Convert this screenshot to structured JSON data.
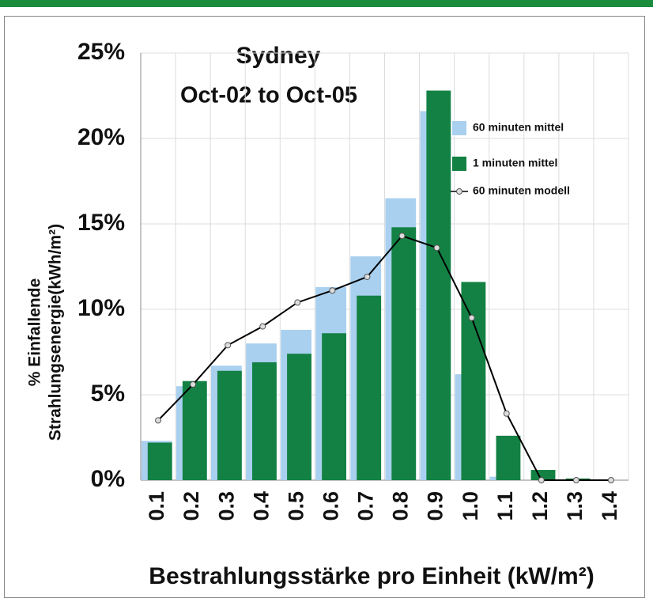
{
  "chart_data": {
    "type": "bar",
    "title": "Sydney",
    "subtitle": "Oct-02 to Oct-05",
    "y_label": [
      "% Einfallende",
      "Strahlungsenergie(kWh/m²)"
    ],
    "x_label": "Bestrahlungsstärke pro Einheit (kW/m²)",
    "categories": [
      "0.1",
      "0.2",
      "0.3",
      "0.4",
      "0.5",
      "0.6",
      "0.7",
      "0.8",
      "0.9",
      "1.0",
      "1.1",
      "1.2",
      "1.3",
      "1.4"
    ],
    "series": [
      {
        "name": "60 minuten mittel",
        "type": "bar",
        "color": "#a9d0ef",
        "values": [
          2.3,
          5.5,
          6.7,
          8.0,
          8.8,
          11.3,
          13.1,
          16.5,
          21.6,
          6.2,
          0.2,
          0,
          0,
          0
        ]
      },
      {
        "name": "1 minuten mittel",
        "type": "bar",
        "color": "#138143",
        "values": [
          2.2,
          5.8,
          6.4,
          6.9,
          7.4,
          8.6,
          10.8,
          14.8,
          22.8,
          11.6,
          2.6,
          0.6,
          0.1,
          0
        ]
      },
      {
        "name": "60 minuten modell",
        "type": "line",
        "color": "#000000",
        "values": [
          3.5,
          5.6,
          7.9,
          9.0,
          10.4,
          11.1,
          11.9,
          14.3,
          13.6,
          9.5,
          3.9,
          0,
          0,
          0
        ]
      }
    ],
    "ylim": [
      0,
      25
    ],
    "yticks": [
      {
        "value": 0,
        "label": "0%"
      },
      {
        "value": 5,
        "label": "5%"
      },
      {
        "value": 10,
        "label": "10%"
      },
      {
        "value": 15,
        "label": "15%"
      },
      {
        "value": 20,
        "label": "20%"
      },
      {
        "value": 25,
        "label": "25%"
      }
    ],
    "grid": true,
    "legend": "upper right"
  }
}
